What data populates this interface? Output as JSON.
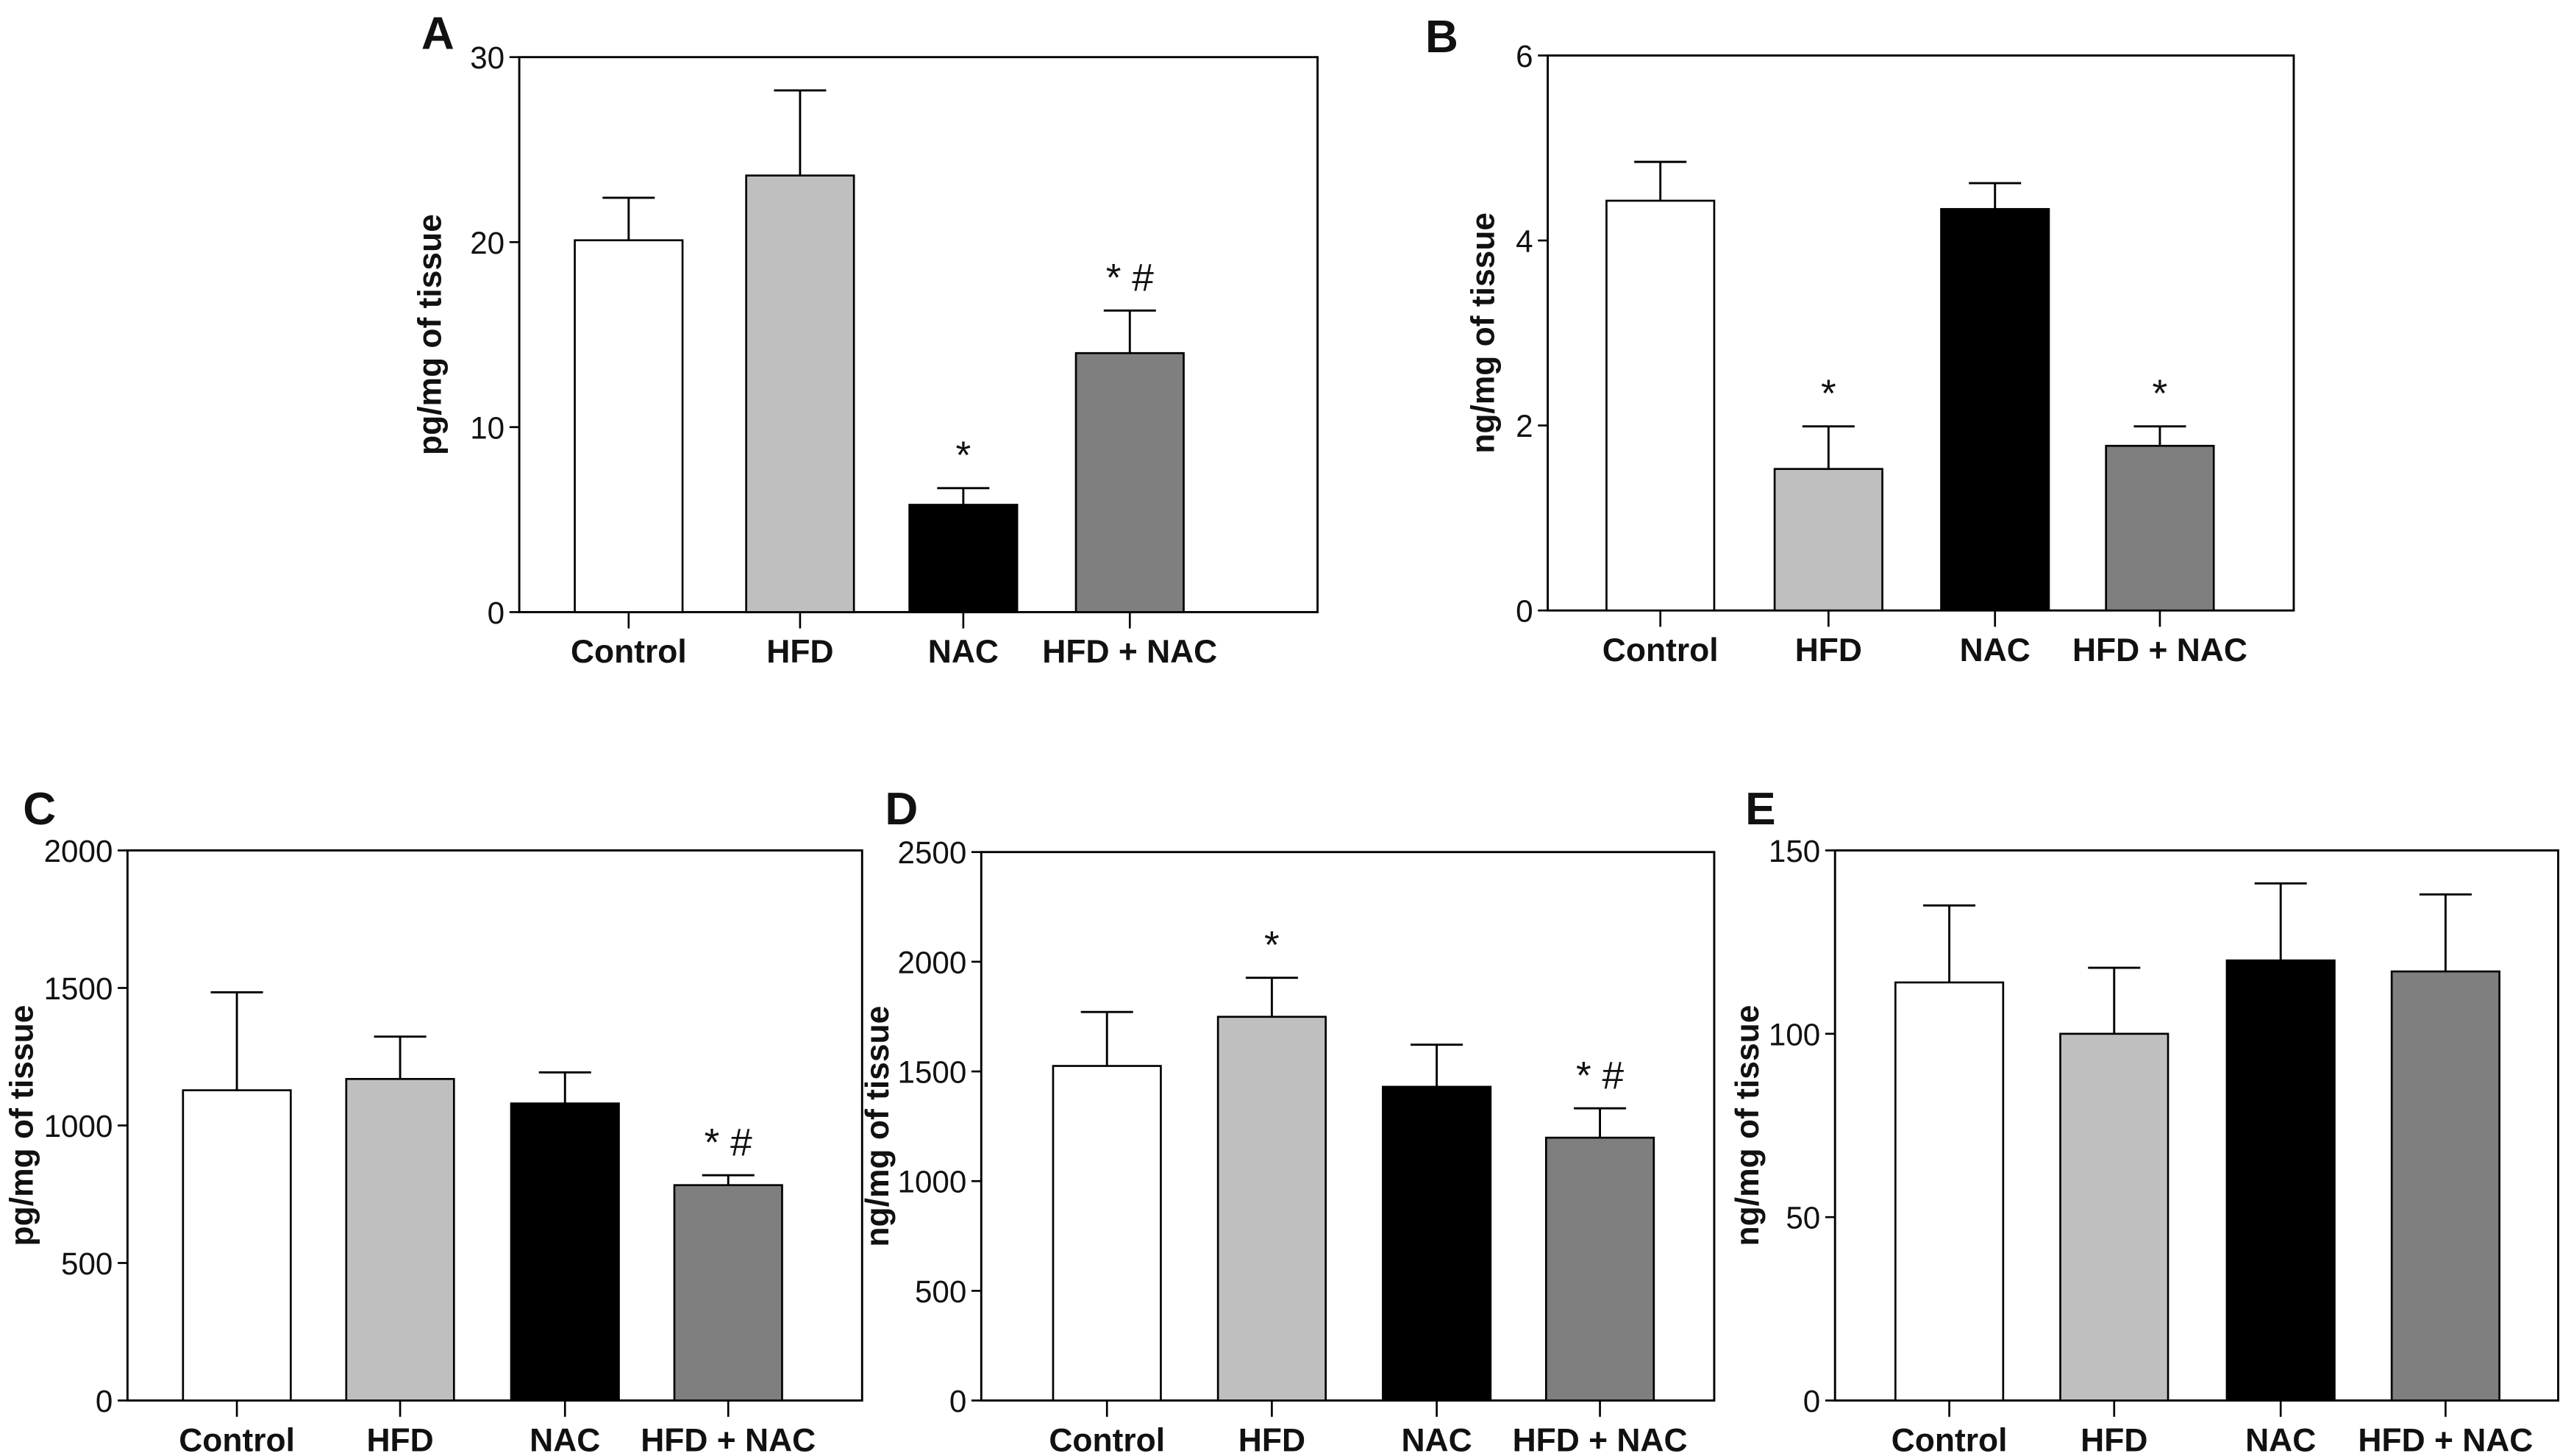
{
  "chart_data": [
    {
      "panel": "A",
      "type": "bar",
      "categories": [
        "Control",
        "HFD",
        "NAC",
        "HFD + NAC"
      ],
      "values": [
        20.1,
        23.6,
        5.8,
        14.0
      ],
      "errors": [
        2.3,
        4.6,
        0.9,
        2.3
      ],
      "annotations": [
        "",
        "",
        "*",
        "* #"
      ],
      "ylabel": "pg/mg of tissue",
      "ylim": [
        0,
        30
      ],
      "yticks": [
        0,
        10,
        20,
        30
      ]
    },
    {
      "panel": "B",
      "type": "bar",
      "categories": [
        "Control",
        "HFD",
        "NAC",
        "HFD + NAC"
      ],
      "values": [
        4.43,
        1.53,
        4.34,
        1.78
      ],
      "errors": [
        0.42,
        0.46,
        0.28,
        0.21
      ],
      "annotations": [
        "",
        "*",
        "",
        "*"
      ],
      "ylabel": "ng/mg of tissue",
      "ylim": [
        0,
        6
      ],
      "yticks": [
        0,
        2,
        4,
        6
      ]
    },
    {
      "panel": "C",
      "type": "bar",
      "categories": [
        "Control",
        "HFD",
        "NAC",
        "HFD + NAC"
      ],
      "values": [
        1128,
        1169,
        1080,
        783
      ],
      "errors": [
        356,
        154,
        113,
        36
      ],
      "annotations": [
        "",
        "",
        "",
        "* #"
      ],
      "ylabel": "pg/mg of tissue",
      "ylim": [
        0,
        2000
      ],
      "yticks": [
        0,
        500,
        1000,
        1500,
        2000
      ]
    },
    {
      "panel": "D",
      "type": "bar",
      "categories": [
        "Control",
        "HFD",
        "NAC",
        "HFD + NAC"
      ],
      "values": [
        1525,
        1749,
        1430,
        1198
      ],
      "errors": [
        246,
        178,
        192,
        134
      ],
      "annotations": [
        "",
        "*",
        "",
        "* #"
      ],
      "ylabel": "ng/mg of tissue",
      "ylim": [
        0,
        2500
      ],
      "yticks": [
        0,
        500,
        1000,
        1500,
        2000,
        2500
      ]
    },
    {
      "panel": "E",
      "type": "bar",
      "categories": [
        "Control",
        "HFD",
        "NAC",
        "HFD + NAC"
      ],
      "values": [
        114,
        100,
        120,
        117
      ],
      "errors": [
        21,
        18,
        21,
        21
      ],
      "annotations": [
        "",
        "",
        "",
        ""
      ],
      "ylabel": "ng/mg of tissue",
      "ylim": [
        0,
        150
      ],
      "yticks": [
        0,
        50,
        100,
        150
      ]
    }
  ],
  "bar_colors": [
    "#ffffff",
    "#bfbfbf",
    "#000000",
    "#7f7f7f"
  ]
}
